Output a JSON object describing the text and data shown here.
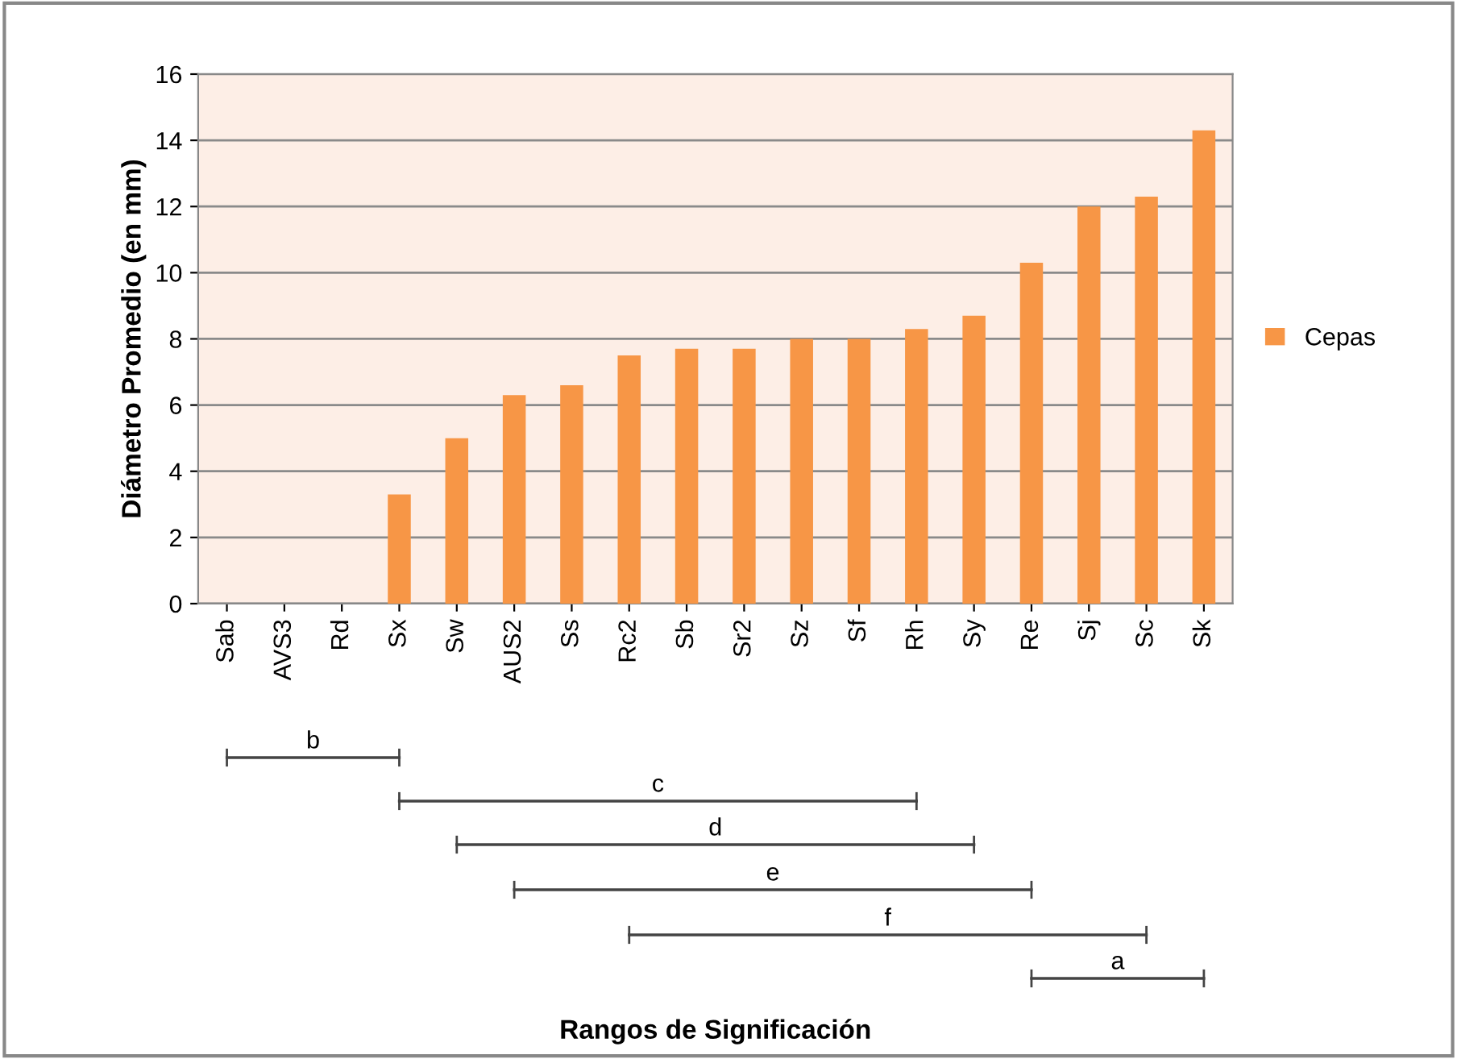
{
  "chart_data": {
    "type": "bar",
    "categories": [
      "Sab",
      "AVS3",
      "Rd",
      "Sx",
      "Sw",
      "AUS2",
      "Ss",
      "Rc2",
      "Sb",
      "Sr2",
      "Sz",
      "Sf",
      "Rh",
      "Sy",
      "Re",
      "Sj",
      "Sc",
      "Sk"
    ],
    "series": [
      {
        "name": "Cepas",
        "color": "#f79646",
        "values": [
          0,
          0,
          0,
          3.3,
          5.0,
          6.3,
          6.6,
          7.5,
          7.7,
          7.7,
          8.0,
          8.0,
          8.3,
          8.7,
          10.3,
          12.0,
          12.3,
          14.3
        ]
      }
    ],
    "ylabel": "Diámetro Promedio (en mm)",
    "ylim": [
      0,
      16
    ],
    "yticks": [
      0,
      2,
      4,
      6,
      8,
      10,
      12,
      14,
      16
    ],
    "grid": "y",
    "legend": "right",
    "annotations": [
      "b",
      "c",
      "d",
      "e",
      "f",
      "a",
      "Rangos de Significación"
    ]
  }
}
